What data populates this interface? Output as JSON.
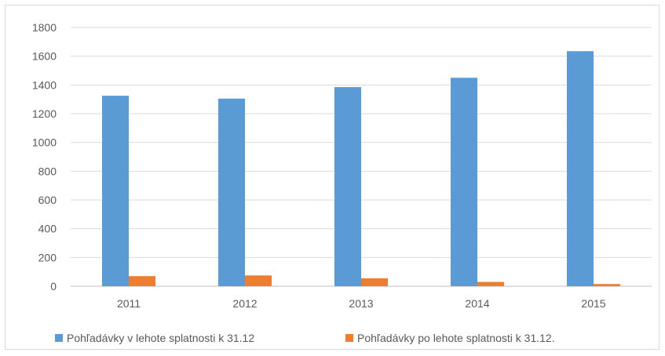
{
  "chart_data": {
    "type": "bar",
    "categories": [
      "2011",
      "2012",
      "2013",
      "2014",
      "2015"
    ],
    "series": [
      {
        "name": "Pohľadávky  v lehote splatnosti k 31.12",
        "color": "#5b9bd5",
        "values": [
          1325,
          1305,
          1385,
          1450,
          1635
        ]
      },
      {
        "name": "Pohľadávky  po lehote splatnosti k 31.12.",
        "color": "#ed7d31",
        "values": [
          70,
          75,
          55,
          30,
          15
        ]
      }
    ],
    "y_ticks": [
      "0",
      "200",
      "400",
      "600",
      "800",
      "1000",
      "1200",
      "1400",
      "1600",
      "1800"
    ],
    "ylim": [
      0,
      1800
    ],
    "grid": true,
    "legend_position": "bottom"
  }
}
